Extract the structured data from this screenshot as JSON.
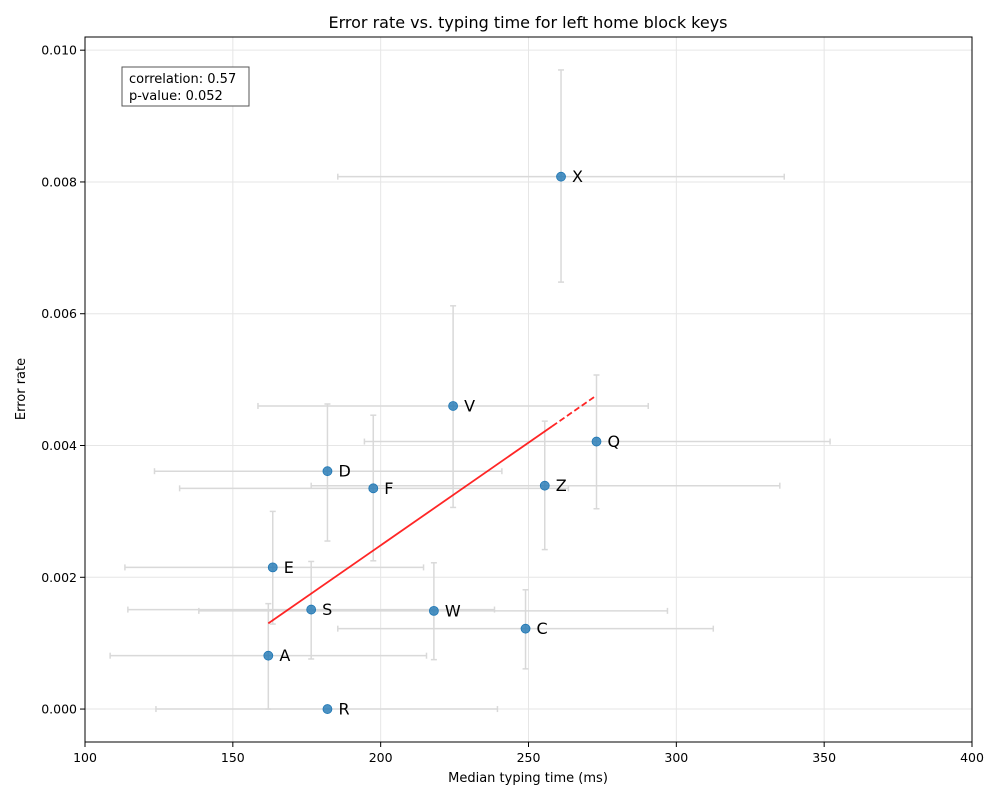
{
  "chart_data": {
    "type": "scatter",
    "title": "Error rate vs. typing time for left home block keys",
    "xlabel": "Median typing time (ms)",
    "ylabel": "Error rate",
    "xlim": [
      100,
      400
    ],
    "ylim": [
      -0.0005,
      0.0102
    ],
    "x_ticks": [
      100,
      150,
      200,
      250,
      300,
      350,
      400
    ],
    "x_tick_labels": [
      "100",
      "150",
      "200",
      "250",
      "300",
      "350",
      "400"
    ],
    "y_ticks": [
      0.0,
      0.002,
      0.004,
      0.006,
      0.008,
      0.01
    ],
    "y_tick_labels": [
      "0.000",
      "0.002",
      "0.004",
      "0.006",
      "0.008",
      "0.010"
    ],
    "grid": true,
    "points": [
      {
        "label": "X",
        "x": 261,
        "y": 0.00808,
        "x_err": [
          185.5,
          336.5
        ],
        "y_err": [
          0.00648,
          0.0097
        ]
      },
      {
        "label": "V",
        "x": 224.5,
        "y": 0.0046,
        "x_err": [
          158.5,
          290.5
        ],
        "y_err": [
          0.00306,
          0.00612
        ]
      },
      {
        "label": "Q",
        "x": 273,
        "y": 0.00406,
        "x_err": [
          194.5,
          352
        ],
        "y_err": [
          0.00304,
          0.00507
        ]
      },
      {
        "label": "D",
        "x": 182,
        "y": 0.00361,
        "x_err": [
          123.5,
          241
        ],
        "y_err": [
          0.00255,
          0.00463
        ]
      },
      {
        "label": "Z",
        "x": 255.5,
        "y": 0.00339,
        "x_err": [
          176.5,
          335
        ],
        "y_err": [
          0.00242,
          0.00437
        ]
      },
      {
        "label": "F",
        "x": 197.5,
        "y": 0.00335,
        "x_err": [
          132,
          263.5
        ],
        "y_err": [
          0.00225,
          0.00446
        ]
      },
      {
        "label": "E",
        "x": 163.5,
        "y": 0.00215,
        "x_err": [
          113.5,
          214.5
        ],
        "y_err": [
          0.00129,
          0.003
        ]
      },
      {
        "label": "S",
        "x": 176.5,
        "y": 0.00151,
        "x_err": [
          114.5,
          238.5
        ],
        "y_err": [
          0.00076,
          0.00224
        ]
      },
      {
        "label": "W",
        "x": 218,
        "y": 0.00149,
        "x_err": [
          138.5,
          297
        ],
        "y_err": [
          0.00075,
          0.00222
        ]
      },
      {
        "label": "C",
        "x": 249,
        "y": 0.00122,
        "x_err": [
          185.5,
          312.5
        ],
        "y_err": [
          0.00061,
          0.00181
        ]
      },
      {
        "label": "A",
        "x": 162,
        "y": 0.00081,
        "x_err": [
          108.5,
          215.5
        ],
        "y_err": [
          0.0,
          0.0016
        ]
      },
      {
        "label": "R",
        "x": 182,
        "y": 0.0,
        "x_err": [
          124,
          239.5
        ],
        "y_err": [
          0.0,
          0.0
        ]
      }
    ],
    "trendline": {
      "x": [
        162,
        273
      ],
      "y": [
        0.0013,
        0.00476
      ],
      "color": "#ff0000",
      "dashed_tail_from_x": 258
    },
    "stats_box": {
      "correlation": "correlation: 0.57",
      "p_value": "p-value: 0.052"
    },
    "colors": {
      "point": "#1f77b4",
      "errorbar": "#d9d9d9",
      "trend": "#ff0000",
      "grid": "#e6e6e6"
    }
  }
}
